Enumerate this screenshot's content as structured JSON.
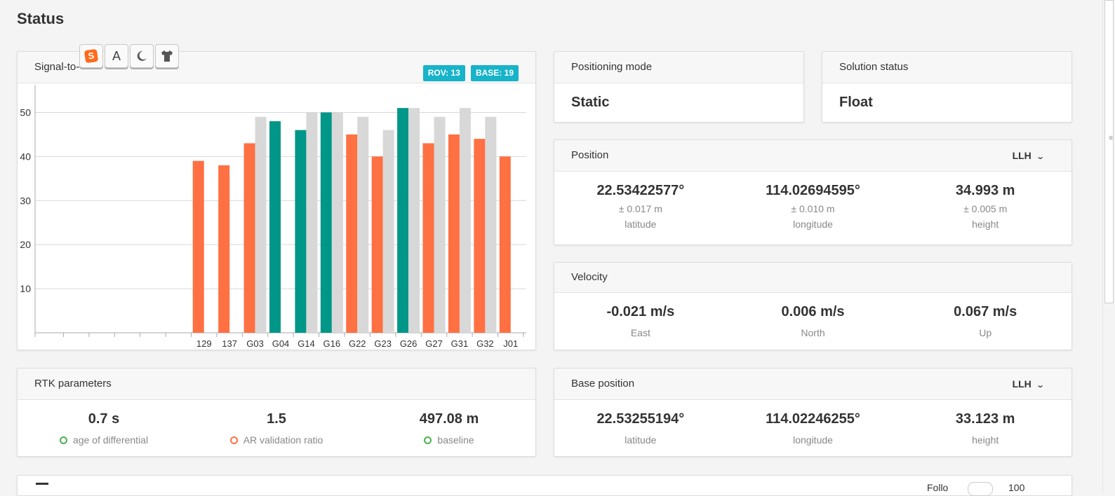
{
  "page_title": "Status",
  "snr_card": {
    "title": "Signal-to-",
    "badges": [
      "ROV: 13",
      "BASE: 19"
    ]
  },
  "toolbar_icons": [
    "sogou-s-icon",
    "font-a-icon",
    "moon-icon",
    "shirt-icon"
  ],
  "toolbar_glyphs": {
    "s": "S",
    "a": "A"
  },
  "chart_data": {
    "type": "bar",
    "categories": [
      "",
      "",
      "",
      "",
      "",
      "",
      "129",
      "137",
      "G03",
      "G04",
      "G14",
      "G16",
      "G22",
      "G23",
      "G26",
      "G27",
      "G31",
      "G32",
      "J01"
    ],
    "series": [
      {
        "values": [
          null,
          null,
          null,
          null,
          null,
          null,
          39,
          38,
          43,
          48,
          46,
          50,
          45,
          40,
          51,
          43,
          45,
          44,
          40
        ],
        "colors": [
          null,
          null,
          null,
          null,
          null,
          null,
          "#ff7043",
          "#ff7043",
          "#ff7043",
          "#009688",
          "#009688",
          "#009688",
          "#ff7043",
          "#ff7043",
          "#009688",
          "#ff7043",
          "#ff7043",
          "#ff7043",
          "#ff7043"
        ]
      },
      {
        "values": [
          null,
          null,
          null,
          null,
          null,
          null,
          null,
          null,
          49,
          null,
          50,
          50,
          49,
          46,
          51,
          49,
          51,
          49,
          null
        ],
        "color": "#d8d8d8"
      }
    ],
    "yticks": [
      10,
      20,
      30,
      40,
      50
    ],
    "ylim": [
      0,
      55
    ],
    "grid": true
  },
  "positioning_mode": {
    "title": "Positioning mode",
    "value": "Static"
  },
  "solution_status": {
    "title": "Solution status",
    "value": "Float"
  },
  "position": {
    "title": "Position",
    "format": "LLH",
    "cols": [
      {
        "value": "22.53422577°",
        "accuracy": "± 0.017 m",
        "label": "latitude"
      },
      {
        "value": "114.02694595°",
        "accuracy": "± 0.010 m",
        "label": "longitude"
      },
      {
        "value": "34.993 m",
        "accuracy": "± 0.005 m",
        "label": "height"
      }
    ]
  },
  "velocity": {
    "title": "Velocity",
    "cols": [
      {
        "value": "-0.021 m/s",
        "label": "East"
      },
      {
        "value": "0.006 m/s",
        "label": "North"
      },
      {
        "value": "0.067 m/s",
        "label": "Up"
      }
    ]
  },
  "rtk": {
    "title": "RTK parameters",
    "cols": [
      {
        "value": "0.7 s",
        "label": "age of differential",
        "status": "#4caf50"
      },
      {
        "value": "1.5",
        "label": "AR validation ratio",
        "status": "#ff7043"
      },
      {
        "value": "497.08 m",
        "label": "baseline",
        "status": "#4caf50"
      }
    ]
  },
  "base_position": {
    "title": "Base position",
    "format": "LLH",
    "cols": [
      {
        "value": "22.53255194°",
        "label": "latitude"
      },
      {
        "value": "114.02246255°",
        "label": "longitude"
      },
      {
        "value": "33.123 m",
        "label": "height"
      }
    ]
  },
  "bottom_bar": {
    "right_label": "Follo",
    "right_value": "100"
  }
}
